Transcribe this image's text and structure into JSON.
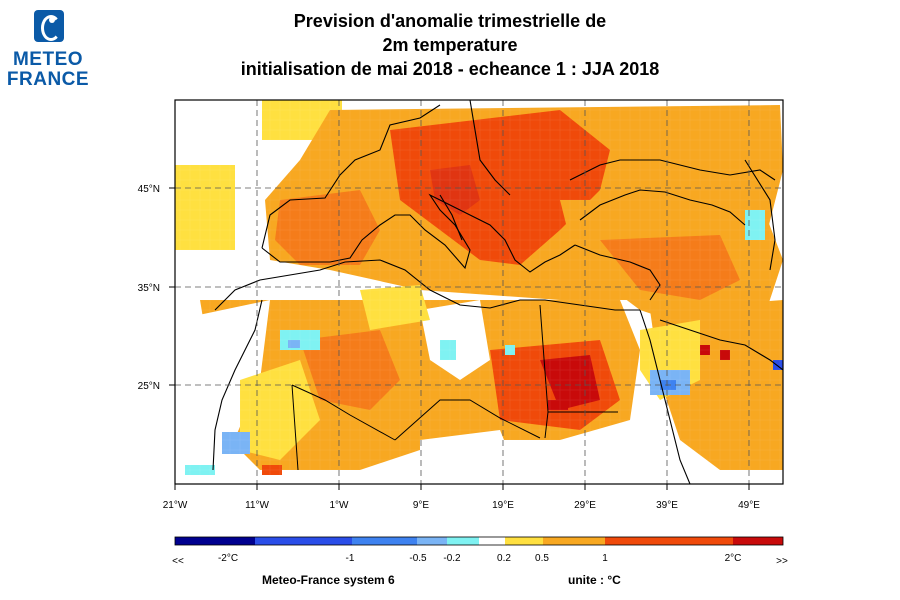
{
  "header": {
    "logo_line1": "METEO",
    "logo_line2": "FRANCE",
    "title_line1": "Prevision d'anomalie trimestrielle de",
    "title_line2": "2m temperature",
    "title_line3": "initialisation de mai 2018  -  echeance 1 : JJA 2018"
  },
  "map": {
    "region": "Mediterranean, Europe, North Africa, Middle East",
    "lon_range": [
      -21,
      53
    ],
    "lat_range": [
      15,
      54
    ],
    "lon_ticks": [
      "21°W",
      "11°W",
      "1°W",
      "9°E",
      "19°E",
      "29°E",
      "39°E",
      "49°E"
    ],
    "lat_ticks": [
      "45°N",
      "35°N",
      "25°N"
    ],
    "grid": "dashed",
    "dominant_anomaly": "warm (0.5 to 2°C) over most land, strongest over central/southeastern Europe and Sahara"
  },
  "legend": {
    "colors": [
      "#00008f",
      "#2a4de8",
      "#3e82f0",
      "#7ab4f5",
      "#7ff2f2",
      "#ffffff",
      "#ffe040",
      "#f8a821",
      "#f57c1a",
      "#f04a0a",
      "#c80a0a"
    ],
    "tick_labels": [
      "<<",
      "-2°C",
      "-1",
      "-0.5",
      "-0.2",
      "0.2",
      "0.5",
      "1",
      "2°C",
      ">>"
    ]
  },
  "footer": {
    "system": "Meteo-France system 6",
    "unit": "unite : °C"
  }
}
